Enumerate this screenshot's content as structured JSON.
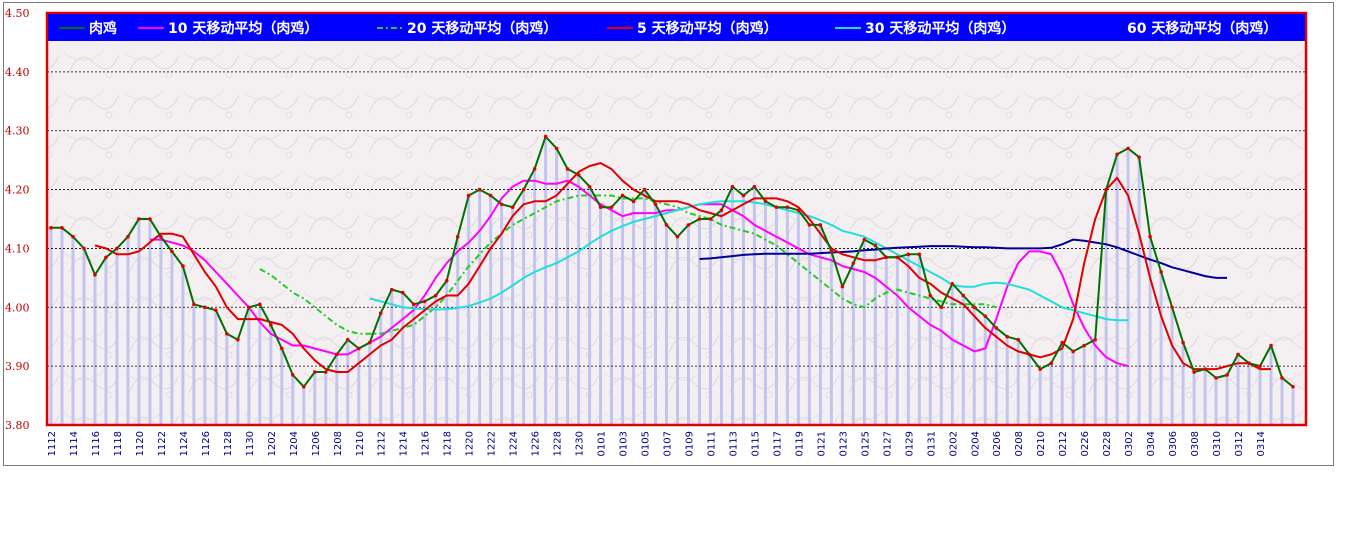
{
  "colors": {
    "plot_border": "#e00000",
    "legend_bg": "#0000ff",
    "bars": "#c4c4f0",
    "grid": "#000000",
    "tick_text_y": "#c00000",
    "tick_text_x": "#000080"
  },
  "chart_data": {
    "type": "line",
    "title": "",
    "xlabel": "",
    "ylabel": "",
    "ylim": [
      3.8,
      4.5
    ],
    "y_ticks": [
      "4.50",
      "4.40",
      "4.30",
      "4.20",
      "4.10",
      "4.00",
      "3.90",
      "3.80"
    ],
    "grid": "horizontal dotted",
    "legend_placement": "top",
    "x_labels": [
      "1112",
      "1114",
      "1116",
      "1118",
      "1120",
      "1122",
      "1124",
      "1126",
      "1128",
      "1130",
      "1202",
      "1204",
      "1206",
      "1208",
      "1210",
      "1212",
      "1214",
      "1216",
      "1218",
      "1220",
      "1222",
      "1224",
      "1226",
      "1228",
      "1230",
      "0101",
      "0103",
      "0105",
      "0107",
      "0109",
      "0111",
      "0113",
      "0115",
      "0117",
      "0119",
      "0121",
      "0123",
      "0125",
      "0127",
      "0129",
      "0131",
      "0202",
      "0204",
      "0206",
      "0208",
      "0210",
      "0212",
      "0226",
      "0228",
      "0302",
      "0304",
      "0306",
      "0308",
      "0310",
      "0312",
      "0314"
    ],
    "series": [
      {
        "name": "肉鸡",
        "color": "#007000",
        "style": "line-markers",
        "values": [
          4.135,
          4.135,
          4.12,
          4.1,
          4.055,
          4.085,
          4.1,
          4.12,
          4.15,
          4.15,
          4.12,
          4.095,
          4.07,
          4.005,
          4.0,
          3.995,
          3.955,
          3.945,
          4.0,
          4.005,
          3.97,
          3.93,
          3.885,
          3.865,
          3.89,
          3.89,
          3.92,
          3.945,
          3.93,
          3.94,
          3.99,
          4.03,
          4.025,
          4.005,
          4.01,
          4.02,
          4.045,
          4.12,
          4.19,
          4.2,
          4.19,
          4.175,
          4.17,
          4.2,
          4.235,
          4.29,
          4.27,
          4.235,
          4.225,
          4.205,
          4.17,
          4.17,
          4.19,
          4.18,
          4.2,
          4.175,
          4.14,
          4.12,
          4.14,
          4.15,
          4.15,
          4.165,
          4.205,
          4.19,
          4.205,
          4.18,
          4.17,
          4.17,
          4.165,
          4.14,
          4.14,
          4.095,
          4.035,
          4.075,
          4.115,
          4.105,
          4.085,
          4.085,
          4.09,
          4.09,
          4.02,
          4.0,
          4.04,
          4.02,
          4.0,
          3.985,
          3.965,
          3.95,
          3.945,
          3.92,
          3.895,
          3.905,
          3.94,
          3.925,
          3.935,
          3.945,
          4.2,
          4.26,
          4.27,
          4.255,
          4.12,
          4.06,
          4.0,
          3.94,
          3.89,
          3.895,
          3.88,
          3.885,
          3.92,
          3.905,
          3.9,
          3.935,
          3.88,
          3.865
        ]
      },
      {
        "name": "10 天移动平均（肉鸡）",
        "color": "#ff00ff",
        "style": "line",
        "start": 9,
        "values": [
          4.115,
          4.115,
          4.11,
          4.105,
          4.095,
          4.08,
          4.06,
          4.04,
          4.02,
          4.0,
          3.975,
          3.955,
          3.945,
          3.935,
          3.935,
          3.93,
          3.925,
          3.92,
          3.92,
          3.93,
          3.94,
          3.95,
          3.965,
          3.98,
          3.995,
          4.02,
          4.05,
          4.075,
          4.095,
          4.11,
          4.13,
          4.155,
          4.185,
          4.205,
          4.215,
          4.215,
          4.21,
          4.21,
          4.215,
          4.205,
          4.19,
          4.175,
          4.165,
          4.155,
          4.16,
          4.16,
          4.16,
          4.165,
          4.165,
          4.17,
          4.175,
          4.175,
          4.175,
          4.165,
          4.155,
          4.14,
          4.13,
          4.12,
          4.11,
          4.1,
          4.09,
          4.085,
          4.08,
          4.07,
          4.065,
          4.06,
          4.05,
          4.035,
          4.02,
          4.0,
          3.985,
          3.97,
          3.96,
          3.945,
          3.935,
          3.925,
          3.93,
          3.98,
          4.035,
          4.075,
          4.095,
          4.095,
          4.09,
          4.055,
          4.005,
          3.965,
          3.935,
          3.915,
          3.905,
          3.9
        ]
      },
      {
        "name": "20 天移动平均（肉鸡）",
        "color": "#22cc22",
        "style": "dashdot",
        "start": 19,
        "values": [
          4.065,
          4.055,
          4.04,
          4.025,
          4.015,
          4.0,
          3.985,
          3.97,
          3.96,
          3.955,
          3.955,
          3.955,
          3.96,
          3.965,
          3.97,
          3.985,
          4.0,
          4.02,
          4.045,
          4.07,
          4.09,
          4.11,
          4.125,
          4.14,
          4.15,
          4.16,
          4.17,
          4.18,
          4.185,
          4.19,
          4.19,
          4.19,
          4.19,
          4.185,
          4.185,
          4.185,
          4.18,
          4.175,
          4.17,
          4.16,
          4.155,
          4.15,
          4.14,
          4.135,
          4.13,
          4.125,
          4.115,
          4.105,
          4.09,
          4.075,
          4.06,
          4.045,
          4.03,
          4.015,
          4.005,
          4.0,
          4.015,
          4.025,
          4.03,
          4.025,
          4.02,
          4.015,
          4.01,
          4.005,
          4.005,
          4.005,
          4.005,
          4.0
        ]
      },
      {
        "name": "5 天移动平均（肉鸡）",
        "color": "#e00000",
        "style": "line",
        "start": 4,
        "values": [
          4.105,
          4.1,
          4.09,
          4.09,
          4.095,
          4.11,
          4.125,
          4.125,
          4.12,
          4.09,
          4.06,
          4.035,
          4.0,
          3.98,
          3.98,
          3.98,
          3.975,
          3.97,
          3.955,
          3.93,
          3.91,
          3.895,
          3.89,
          3.89,
          3.905,
          3.92,
          3.935,
          3.945,
          3.965,
          3.98,
          3.995,
          4.01,
          4.02,
          4.02,
          4.04,
          4.07,
          4.1,
          4.125,
          4.155,
          4.175,
          4.18,
          4.18,
          4.19,
          4.21,
          4.23,
          4.24,
          4.245,
          4.235,
          4.215,
          4.2,
          4.19,
          4.18,
          4.18,
          4.18,
          4.175,
          4.165,
          4.16,
          4.155,
          4.165,
          4.175,
          4.185,
          4.185,
          4.185,
          4.18,
          4.17,
          4.15,
          4.125,
          4.1,
          4.09,
          4.085,
          4.08,
          4.08,
          4.085,
          4.085,
          4.07,
          4.05,
          4.04,
          4.025,
          4.015,
          4.005,
          3.985,
          3.965,
          3.95,
          3.935,
          3.925,
          3.92,
          3.915,
          3.92,
          3.93,
          3.98,
          4.075,
          4.15,
          4.2,
          4.22,
          4.19,
          4.125,
          4.05,
          3.985,
          3.935,
          3.905,
          3.895,
          3.895,
          3.895,
          3.9,
          3.905,
          3.905,
          3.895,
          3.895
        ]
      },
      {
        "name": "30 天移动平均（肉鸡）",
        "color": "#22dddd",
        "style": "line",
        "start": 29,
        "values": [
          4.015,
          4.01,
          4.005,
          4.0,
          3.998,
          3.997,
          3.996,
          3.997,
          3.999,
          4.002,
          4.008,
          4.015,
          4.025,
          4.037,
          4.05,
          4.06,
          4.068,
          4.075,
          4.085,
          4.095,
          4.108,
          4.12,
          4.13,
          4.138,
          4.145,
          4.15,
          4.155,
          4.16,
          4.165,
          4.17,
          4.175,
          4.178,
          4.18,
          4.18,
          4.18,
          4.178,
          4.175,
          4.17,
          4.165,
          4.16,
          4.155,
          4.148,
          4.14,
          4.13,
          4.125,
          4.12,
          4.11,
          4.1,
          4.09,
          4.08,
          4.07,
          4.06,
          4.05,
          4.038,
          4.035,
          4.035,
          4.04,
          4.042,
          4.04,
          4.035,
          4.03,
          4.02,
          4.01,
          4.0,
          3.995,
          3.99,
          3.985,
          3.98,
          3.978,
          3.978
        ]
      },
      {
        "name": "60 天移动平均（肉鸡）",
        "color": "#000099",
        "style": "line",
        "start": 59,
        "values": [
          4.082,
          4.083,
          4.085,
          4.087,
          4.089,
          4.09,
          4.091,
          4.091,
          4.091,
          4.091,
          4.091,
          4.092,
          4.093,
          4.094,
          4.095,
          4.097,
          4.098,
          4.1,
          4.101,
          4.102,
          4.103,
          4.104,
          4.104,
          4.104,
          4.103,
          4.102,
          4.102,
          4.101,
          4.1,
          4.1,
          4.1,
          4.1,
          4.101,
          4.107,
          4.115,
          4.113,
          4.11,
          4.107,
          4.102,
          4.095,
          4.088,
          4.081,
          4.075,
          4.068,
          4.063,
          4.058,
          4.053,
          4.05,
          4.05
        ]
      }
    ]
  }
}
